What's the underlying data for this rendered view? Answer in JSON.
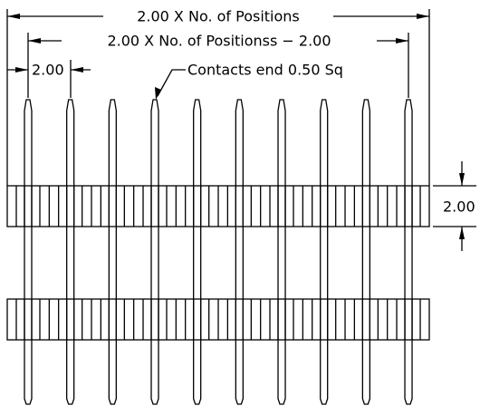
{
  "dimensions": {
    "overall": "2.00 X No. of Positions",
    "inner": "2.00 X No. of Positionss − 2.00",
    "pitch": "2.00",
    "height": "2.00"
  },
  "callout": "Contacts end 0.50 Sq"
}
